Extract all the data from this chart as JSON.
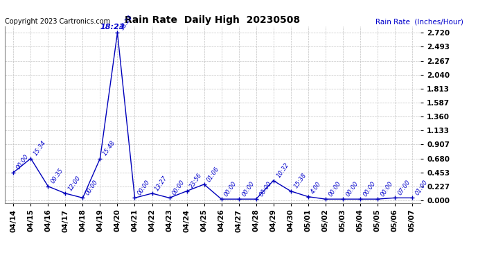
{
  "title": "Rain Rate  Daily High  20230508",
  "copyright": "Copyright 2023 Cartronics.com",
  "ylabel": "Rain Rate  (Inches/Hour)",
  "line_color": "#0000bb",
  "background_color": "#ffffff",
  "grid_color": "#bbbbbb",
  "text_color_blue": "#0000cc",
  "text_color_black": "#000000",
  "yticks": [
    0.0,
    0.227,
    0.453,
    0.68,
    0.907,
    1.133,
    1.36,
    1.587,
    1.813,
    2.04,
    2.267,
    2.493,
    2.72
  ],
  "ylim": [
    -0.04,
    2.83
  ],
  "x_labels": [
    "04/14",
    "04/15",
    "04/16",
    "04/17",
    "04/18",
    "04/19",
    "04/20",
    "04/21",
    "04/22",
    "04/23",
    "04/24",
    "04/25",
    "04/26",
    "04/27",
    "04/28",
    "04/29",
    "04/30",
    "05/01",
    "05/02",
    "05/03",
    "05/04",
    "05/05",
    "05/06",
    "05/07"
  ],
  "data_points": [
    {
      "day_idx": 0,
      "time": "00:00",
      "value": 0.453
    },
    {
      "day_idx": 1,
      "time": "15:34",
      "value": 0.68
    },
    {
      "day_idx": 2,
      "time": "09:35",
      "value": 0.227
    },
    {
      "day_idx": 3,
      "time": "12:00",
      "value": 0.113
    },
    {
      "day_idx": 4,
      "time": "00:00",
      "value": 0.04
    },
    {
      "day_idx": 5,
      "time": "15:48",
      "value": 0.68
    },
    {
      "day_idx": 6,
      "time": "18:23",
      "value": 2.72
    },
    {
      "day_idx": 7,
      "time": "00:00",
      "value": 0.04
    },
    {
      "day_idx": 8,
      "time": "13:27",
      "value": 0.113
    },
    {
      "day_idx": 9,
      "time": "00:00",
      "value": 0.04
    },
    {
      "day_idx": 10,
      "time": "23:56",
      "value": 0.15
    },
    {
      "day_idx": 11,
      "time": "01:06",
      "value": 0.26
    },
    {
      "day_idx": 12,
      "time": "00:00",
      "value": 0.02
    },
    {
      "day_idx": 13,
      "time": "00:00",
      "value": 0.02
    },
    {
      "day_idx": 14,
      "time": "00:00",
      "value": 0.02
    },
    {
      "day_idx": 15,
      "time": "10:32",
      "value": 0.32
    },
    {
      "day_idx": 16,
      "time": "15:38",
      "value": 0.15
    },
    {
      "day_idx": 17,
      "time": "4:00",
      "value": 0.06
    },
    {
      "day_idx": 18,
      "time": "00:00",
      "value": 0.02
    },
    {
      "day_idx": 19,
      "time": "00:00",
      "value": 0.02
    },
    {
      "day_idx": 20,
      "time": "00:00",
      "value": 0.02
    },
    {
      "day_idx": 21,
      "time": "00:00",
      "value": 0.02
    },
    {
      "day_idx": 22,
      "time": "07:00",
      "value": 0.04
    },
    {
      "day_idx": 23,
      "time": "01:00",
      "value": 0.04
    }
  ],
  "peak_label": "18:23",
  "peak_idx": 6,
  "figsize": [
    6.9,
    3.75
  ],
  "dpi": 100
}
